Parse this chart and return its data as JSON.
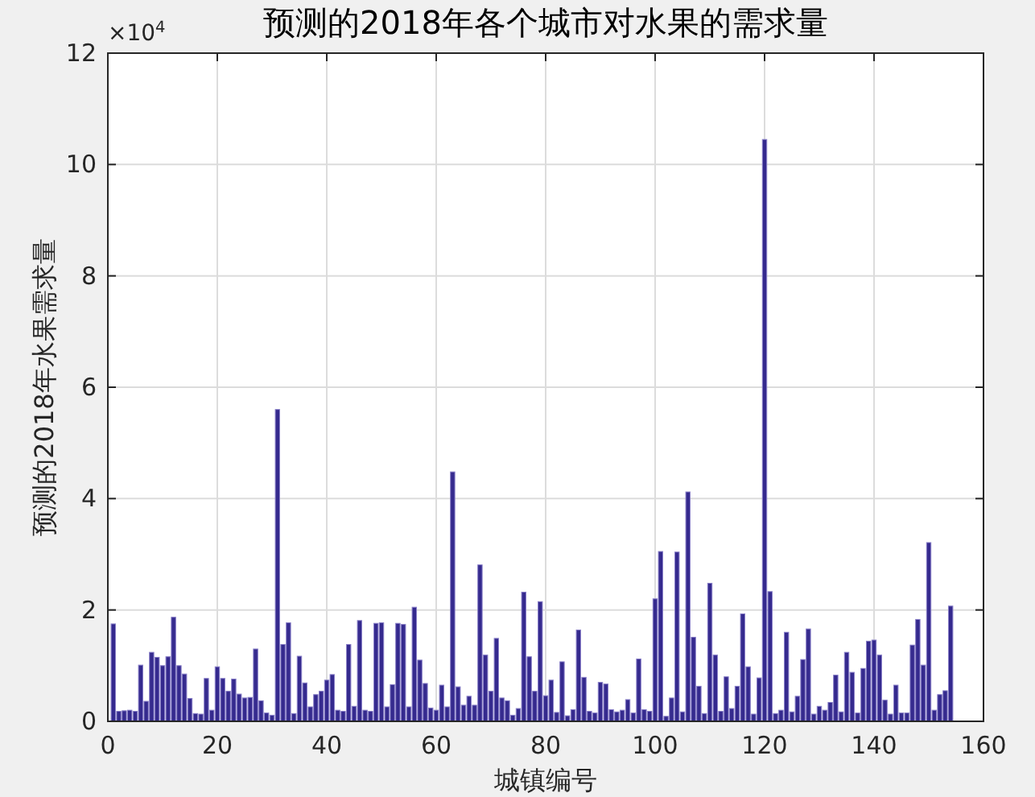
{
  "chart_data": {
    "type": "bar",
    "title": "预测的2018年各个城市对水果的需求量",
    "xlabel": "城镇编号",
    "ylabel": "预测的2018年水果需求量",
    "annotations": [
      "×10$^{4}$"
    ],
    "x": [
      1,
      2,
      3,
      4,
      5,
      6,
      7,
      8,
      9,
      10,
      11,
      12,
      13,
      14,
      15,
      16,
      17,
      18,
      19,
      20,
      21,
      22,
      23,
      24,
      25,
      26,
      27,
      28,
      29,
      30,
      31,
      32,
      33,
      34,
      35,
      36,
      37,
      38,
      39,
      40,
      41,
      42,
      43,
      44,
      45,
      46,
      47,
      48,
      49,
      50,
      51,
      52,
      53,
      54,
      55,
      56,
      57,
      58,
      59,
      60,
      61,
      62,
      63,
      64,
      65,
      66,
      67,
      68,
      69,
      70,
      71,
      72,
      73,
      74,
      75,
      76,
      77,
      78,
      79,
      80,
      81,
      82,
      83,
      84,
      85,
      86,
      87,
      88,
      89,
      90,
      91,
      92,
      93,
      94,
      95,
      96,
      97,
      98,
      99,
      100,
      101,
      102,
      103,
      104,
      105,
      106,
      107,
      108,
      109,
      110,
      111,
      112,
      113,
      114,
      115,
      116,
      117,
      118,
      119,
      120,
      121,
      122,
      123,
      124,
      125,
      126,
      127,
      128,
      129,
      130,
      131,
      132,
      133,
      134,
      135,
      136,
      137,
      138,
      139,
      140,
      141,
      142,
      143,
      144,
      145,
      146,
      147,
      148,
      149,
      150,
      151,
      152,
      153,
      154
    ],
    "values": [
      1.75,
      0.18,
      0.19,
      0.2,
      0.18,
      1.01,
      0.36,
      1.24,
      1.15,
      1.0,
      1.16,
      1.87,
      1.0,
      0.85,
      0.41,
      0.14,
      0.13,
      0.77,
      0.2,
      0.98,
      0.77,
      0.54,
      0.76,
      0.49,
      0.42,
      0.43,
      1.3,
      0.37,
      0.15,
      0.11,
      5.6,
      1.38,
      1.77,
      0.14,
      1.17,
      0.69,
      0.26,
      0.48,
      0.54,
      0.74,
      0.84,
      0.2,
      0.18,
      1.38,
      0.27,
      1.81,
      0.2,
      0.18,
      1.76,
      1.77,
      0.26,
      0.66,
      1.76,
      1.74,
      0.26,
      2.05,
      1.1,
      0.68,
      0.24,
      0.2,
      0.65,
      0.26,
      4.48,
      0.62,
      0.29,
      0.45,
      0.29,
      2.81,
      1.19,
      0.54,
      1.49,
      0.42,
      0.37,
      0.11,
      0.23,
      2.32,
      1.16,
      0.54,
      2.15,
      0.46,
      0.74,
      0.16,
      1.07,
      0.1,
      0.21,
      1.64,
      0.79,
      0.18,
      0.15,
      0.7,
      0.67,
      0.21,
      0.17,
      0.2,
      0.39,
      0.15,
      1.12,
      0.21,
      0.18,
      2.2,
      3.05,
      0.09,
      0.42,
      3.04,
      0.17,
      4.12,
      1.51,
      0.63,
      0.14,
      2.48,
      1.19,
      0.18,
      0.8,
      0.23,
      0.63,
      1.93,
      0.98,
      0.13,
      0.78,
      10.45,
      2.33,
      0.14,
      0.2,
      1.6,
      0.17,
      0.45,
      1.11,
      1.66,
      0.13,
      0.27,
      0.2,
      0.34,
      0.83,
      0.17,
      1.24,
      0.88,
      0.15,
      0.95,
      1.44,
      1.46,
      1.19,
      0.38,
      0.13,
      0.65,
      0.15,
      0.15,
      1.37,
      1.83,
      1.01,
      3.21,
      0.2,
      0.48,
      0.55,
      2.07
    ],
    "color": "#352a8e",
    "xlim": [
      0,
      160
    ],
    "xticks": [
      0,
      20,
      40,
      60,
      80,
      100,
      120,
      140,
      160
    ],
    "ylim": [
      0,
      12
    ],
    "yticks": [
      0,
      2,
      4,
      6,
      8,
      10,
      12
    ],
    "grid": true
  }
}
